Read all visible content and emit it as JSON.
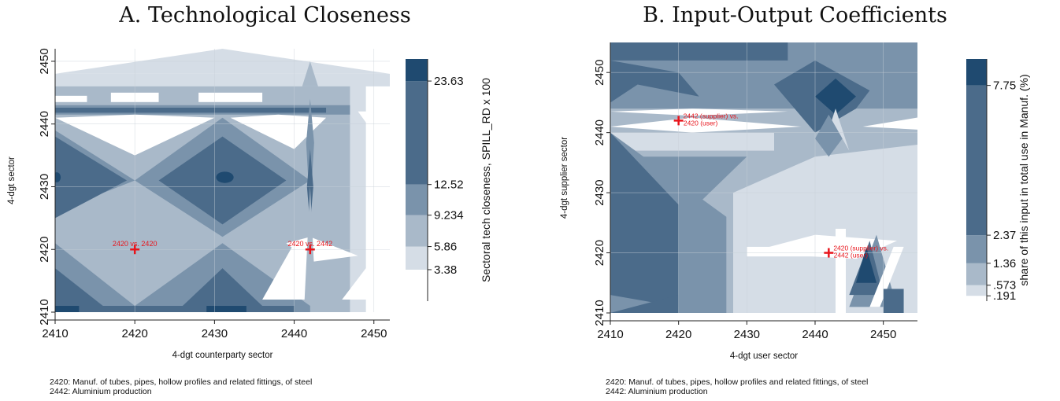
{
  "charts": {
    "a": {
      "title": "A. Technological Closeness",
      "note_1": "2420: Manuf. of tubes, pipes, hollow profiles and related fittings, of steel",
      "note_2": "2442: Aluminium production"
    },
    "b": {
      "title": "B. Input-Output Coefficients",
      "note_1": "2420: Manuf. of tubes, pipes, hollow profiles and related fittings, of steel",
      "note_2": "2442: Aluminium production"
    }
  },
  "colors": {
    "level_1": "#ffffff",
    "level_2": "#d5dde6",
    "level_3": "#a9b9c9",
    "level_4": "#7a93ab",
    "level_5": "#4b6b8a",
    "level_6": "#1f4a70",
    "marker": "#e8141b",
    "axis": "#222222",
    "grid": "#c8d0d8"
  },
  "chart_data": [
    {
      "type": "heatmap",
      "title": "A. Technological Closeness",
      "xlabel": "4-dgt counterparty sector",
      "ylabel": "4-dgt sector",
      "xlim": [
        2410,
        2452
      ],
      "ylim": [
        2410,
        2452
      ],
      "x_ticks": [
        2410,
        2420,
        2430,
        2440,
        2450
      ],
      "y_ticks": [
        2410,
        2420,
        2430,
        2440,
        2450
      ],
      "colorbar_label": "Sectoral tech closeness, SPILL_RD x 100",
      "colorbar_range": [
        0,
        26
      ],
      "colorbar_ticks": [
        3.38,
        5.86,
        9.234,
        12.52,
        23.63
      ],
      "colorbar_tick_labels": [
        "3.38",
        "5.86",
        "9.234",
        "12.52",
        "23.63"
      ],
      "annotations": [
        {
          "x": 2420,
          "y": 2420,
          "text": "2420 vs. 2420"
        },
        {
          "x": 2442,
          "y": 2420,
          "text": "2420 vs. 2442"
        }
      ]
    },
    {
      "type": "heatmap",
      "title": "B. Input-Output Coefficients",
      "xlabel": "4-dgt user sector",
      "ylabel": "4-dgt supplier sector",
      "xlim": [
        2410,
        2455
      ],
      "ylim": [
        2410,
        2455
      ],
      "x_ticks": [
        2410,
        2420,
        2430,
        2440,
        2450
      ],
      "y_ticks": [
        2410,
        2420,
        2430,
        2440,
        2450
      ],
      "colorbar_label": "share of this input in total use in Manuf. (%)",
      "colorbar_range": [
        0,
        8.7
      ],
      "colorbar_ticks": [
        0.191,
        0.573,
        1.36,
        2.37,
        7.75
      ],
      "colorbar_tick_labels": [
        ".191",
        ".573",
        "1.36",
        "2.37",
        "7.75"
      ],
      "annotations": [
        {
          "x": 2420,
          "y": 2442,
          "text": "2442 (supplier) vs.\n2420 (user)"
        },
        {
          "x": 2442,
          "y": 2420,
          "text": "2420 (supplier) vs.\n2442 (user)"
        }
      ]
    }
  ]
}
